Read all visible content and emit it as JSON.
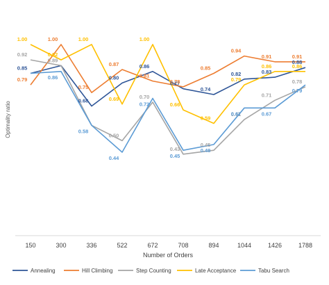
{
  "chart_data": {
    "type": "line",
    "title": "",
    "xlabel": "Number of Orders",
    "ylabel": "Optimality ratio",
    "categories": [
      "150",
      "300",
      "336",
      "522",
      "672",
      "708",
      "894",
      "1044",
      "1426",
      "1788"
    ],
    "ylim": [
      0,
      1.15
    ],
    "grid": false,
    "legend_position": "bottom",
    "series": [
      {
        "name": "Annealing",
        "color": "#2e5597",
        "values": [
          0.85,
          0.89,
          0.68,
          0.8,
          0.86,
          0.77,
          0.74,
          0.82,
          0.83,
          0.88
        ],
        "labels": [
          "0.85",
          "",
          "0.68",
          "0.80",
          "0.86",
          "0.77",
          "0.74",
          "0.82",
          "0.83",
          "0.88"
        ]
      },
      {
        "name": "Hill Climbing",
        "color": "#ed7d31",
        "values": [
          0.79,
          1.0,
          0.75,
          0.87,
          0.81,
          0.78,
          0.85,
          0.94,
          0.91,
          0.91
        ],
        "labels": [
          "0.79",
          "1.00",
          "0.75",
          "0.87",
          "0.81",
          "0.78",
          "0.85",
          "0.94",
          "0.91",
          "0.91"
        ]
      },
      {
        "name": "Step Counting",
        "color": "#a5a5a5",
        "values": [
          0.92,
          0.89,
          0.58,
          0.5,
          0.7,
          0.43,
          0.45,
          0.61,
          0.71,
          0.78
        ],
        "labels": [
          "0.92",
          "0.89",
          "",
          "0.50",
          "0.70",
          "0.43",
          "0.45",
          "0.61",
          "0.71",
          "0.78"
        ]
      },
      {
        "name": "Late Acceptance",
        "color": "#ffc000",
        "values": [
          1.0,
          0.92,
          1.0,
          0.69,
          1.0,
          0.66,
          0.59,
          0.79,
          0.86,
          0.86
        ],
        "labels": [
          "1.00",
          "0.92",
          "1.00",
          "0.69",
          "1.00",
          "0.66",
          "0.59",
          "0.79",
          "0.86",
          "0.86"
        ]
      },
      {
        "name": "Tabu Search",
        "color": "#5b9bd5",
        "values": [
          0.85,
          0.86,
          0.58,
          0.44,
          0.72,
          0.45,
          0.48,
          0.67,
          0.67,
          0.79
        ],
        "labels": [
          "",
          "0.86",
          "0.58",
          "0.44",
          "0.72",
          "0.45",
          "0.48",
          "0.67",
          "0.67",
          "0.79"
        ]
      }
    ]
  }
}
